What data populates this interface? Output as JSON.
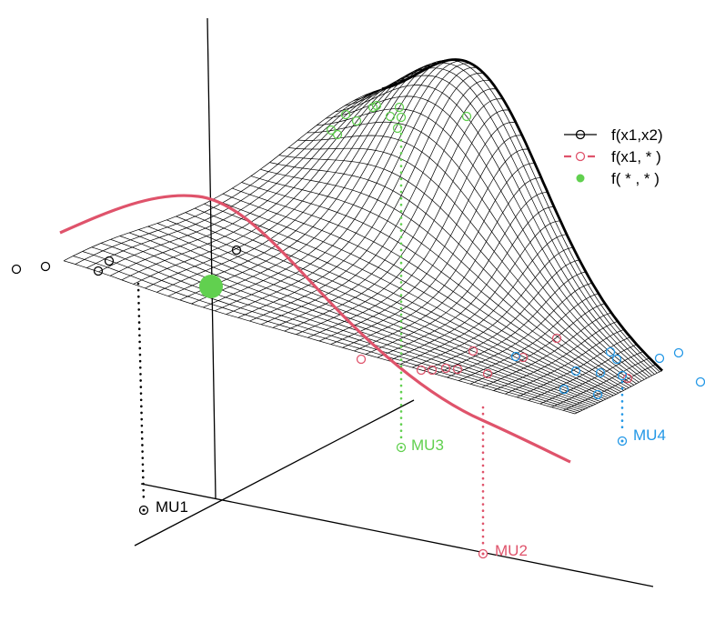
{
  "colors": {
    "surface": "#000000",
    "conditional": "#DF536B",
    "marginal": "#61D04F",
    "mu1": "#000000",
    "mu2": "#DF536B",
    "mu3": "#61D04F",
    "mu4": "#2297E6",
    "axes": "#000000"
  },
  "chart_data": {
    "type": "surface3d",
    "title": "",
    "legend": {
      "placement": "top-right",
      "entries": [
        {
          "label": "f(x1,x2)",
          "symbol": "line-open-circle",
          "color": "#000000"
        },
        {
          "label": "f(x1, * )",
          "symbol": "dashed-line-open-circle",
          "color": "#DF536B"
        },
        {
          "label": "f( * , * )",
          "symbol": "filled-circle",
          "color": "#61D04F"
        }
      ]
    },
    "clusters": [
      {
        "name": "MU1",
        "color": "#000000"
      },
      {
        "name": "MU2",
        "color": "#DF536B"
      },
      {
        "name": "MU3",
        "color": "#61D04F"
      },
      {
        "name": "MU4",
        "color": "#2297E6"
      }
    ],
    "grid": true,
    "axes_ticks": false
  }
}
